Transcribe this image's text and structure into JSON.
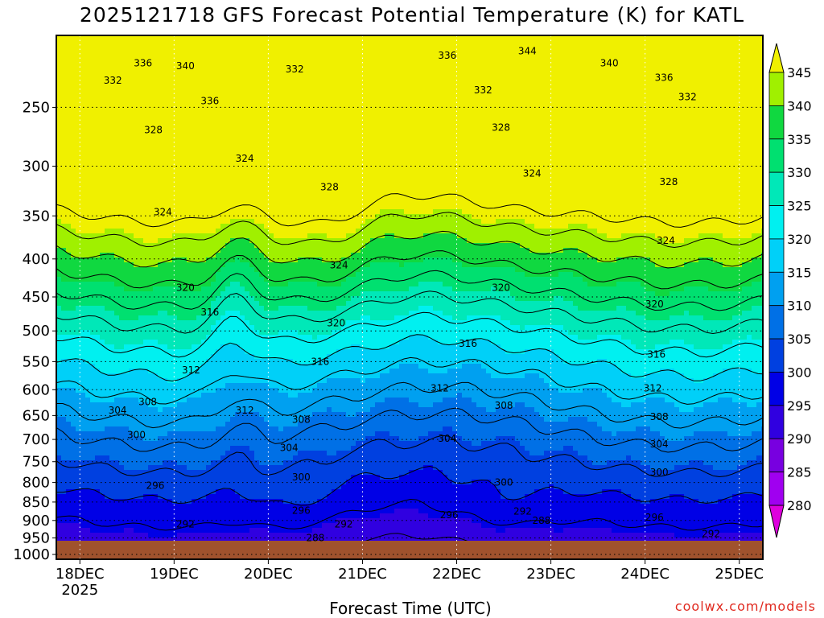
{
  "title": "2025121718 GFS Forecast Potential Temperature (K) for KATL",
  "credit": "coolwx.com/models",
  "chart_data": {
    "type": "heatmap",
    "title": "2025121718 GFS Forecast Potential Temperature (K) for KATL",
    "xlabel": "Forecast Time (UTC)",
    "ylabel": "",
    "x_ticks": [
      "18DEC",
      "19DEC",
      "20DEC",
      "21DEC",
      "22DEC",
      "23DEC",
      "24DEC",
      "25DEC"
    ],
    "x_sub_label": "2025",
    "x_range_days": [
      -0.25,
      7.25
    ],
    "y_ticks": [
      250,
      300,
      350,
      400,
      450,
      500,
      550,
      600,
      650,
      700,
      750,
      800,
      850,
      900,
      950,
      1000
    ],
    "y_range_hpa": [
      200,
      1015
    ],
    "colorbar": {
      "levels": [
        280,
        285,
        290,
        295,
        300,
        305,
        310,
        315,
        320,
        325,
        330,
        335,
        340,
        345
      ],
      "colors": [
        "#dd00dd",
        "#a000f0",
        "#7800e0",
        "#3000e0",
        "#0000e6",
        "#0040e0",
        "#0070e6",
        "#00a0f0",
        "#00d0f8",
        "#00f0f0",
        "#00e8b8",
        "#00e070",
        "#10d840",
        "#a0f000",
        "#f0f000"
      ]
    },
    "contour_interval": 4,
    "contour_labels": [
      {
        "value": 336,
        "x_day": 0.67,
        "p": 218
      },
      {
        "value": 340,
        "x_day": 1.12,
        "p": 220
      },
      {
        "value": 332,
        "x_day": 0.35,
        "p": 230
      },
      {
        "value": 336,
        "x_day": 1.38,
        "p": 245
      },
      {
        "value": 332,
        "x_day": 2.28,
        "p": 222
      },
      {
        "value": 336,
        "x_day": 3.9,
        "p": 213
      },
      {
        "value": 344,
        "x_day": 4.75,
        "p": 210
      },
      {
        "value": 340,
        "x_day": 5.62,
        "p": 218
      },
      {
        "value": 336,
        "x_day": 6.2,
        "p": 228
      },
      {
        "value": 332,
        "x_day": 6.45,
        "p": 242
      },
      {
        "value": 332,
        "x_day": 4.28,
        "p": 237
      },
      {
        "value": 328,
        "x_day": 0.78,
        "p": 268
      },
      {
        "value": 328,
        "x_day": 4.47,
        "p": 266
      },
      {
        "value": 324,
        "x_day": 1.75,
        "p": 293
      },
      {
        "value": 324,
        "x_day": 4.8,
        "p": 307
      },
      {
        "value": 328,
        "x_day": 2.65,
        "p": 320
      },
      {
        "value": 328,
        "x_day": 6.25,
        "p": 315
      },
      {
        "value": 324,
        "x_day": 0.88,
        "p": 346
      },
      {
        "value": 324,
        "x_day": 2.75,
        "p": 408
      },
      {
        "value": 324,
        "x_day": 6.22,
        "p": 378
      },
      {
        "value": 320,
        "x_day": 1.12,
        "p": 437
      },
      {
        "value": 320,
        "x_day": 4.47,
        "p": 437
      },
      {
        "value": 320,
        "x_day": 6.1,
        "p": 460
      },
      {
        "value": 316,
        "x_day": 1.38,
        "p": 472
      },
      {
        "value": 320,
        "x_day": 2.72,
        "p": 488
      },
      {
        "value": 316,
        "x_day": 2.55,
        "p": 550
      },
      {
        "value": 316,
        "x_day": 4.12,
        "p": 520
      },
      {
        "value": 316,
        "x_day": 6.12,
        "p": 538
      },
      {
        "value": 312,
        "x_day": 1.18,
        "p": 565
      },
      {
        "value": 312,
        "x_day": 3.82,
        "p": 597
      },
      {
        "value": 312,
        "x_day": 6.08,
        "p": 597
      },
      {
        "value": 308,
        "x_day": 0.72,
        "p": 623
      },
      {
        "value": 308,
        "x_day": 4.5,
        "p": 630
      },
      {
        "value": 304,
        "x_day": 0.4,
        "p": 640
      },
      {
        "value": 312,
        "x_day": 1.75,
        "p": 640
      },
      {
        "value": 308,
        "x_day": 2.35,
        "p": 658
      },
      {
        "value": 308,
        "x_day": 6.15,
        "p": 653
      },
      {
        "value": 300,
        "x_day": 0.6,
        "p": 690
      },
      {
        "value": 304,
        "x_day": 2.22,
        "p": 718
      },
      {
        "value": 304,
        "x_day": 3.9,
        "p": 698
      },
      {
        "value": 304,
        "x_day": 6.15,
        "p": 710
      },
      {
        "value": 300,
        "x_day": 2.35,
        "p": 787
      },
      {
        "value": 300,
        "x_day": 4.5,
        "p": 800
      },
      {
        "value": 300,
        "x_day": 6.15,
        "p": 775
      },
      {
        "value": 296,
        "x_day": 0.8,
        "p": 808
      },
      {
        "value": 296,
        "x_day": 2.35,
        "p": 873
      },
      {
        "value": 296,
        "x_day": 3.92,
        "p": 885
      },
      {
        "value": 292,
        "x_day": 4.7,
        "p": 875
      },
      {
        "value": 296,
        "x_day": 6.1,
        "p": 892
      },
      {
        "value": 292,
        "x_day": 1.12,
        "p": 911
      },
      {
        "value": 292,
        "x_day": 2.8,
        "p": 911
      },
      {
        "value": 288,
        "x_day": 4.9,
        "p": 900
      },
      {
        "value": 288,
        "x_day": 2.5,
        "p": 950
      },
      {
        "value": 292,
        "x_day": 6.7,
        "p": 938
      }
    ]
  }
}
